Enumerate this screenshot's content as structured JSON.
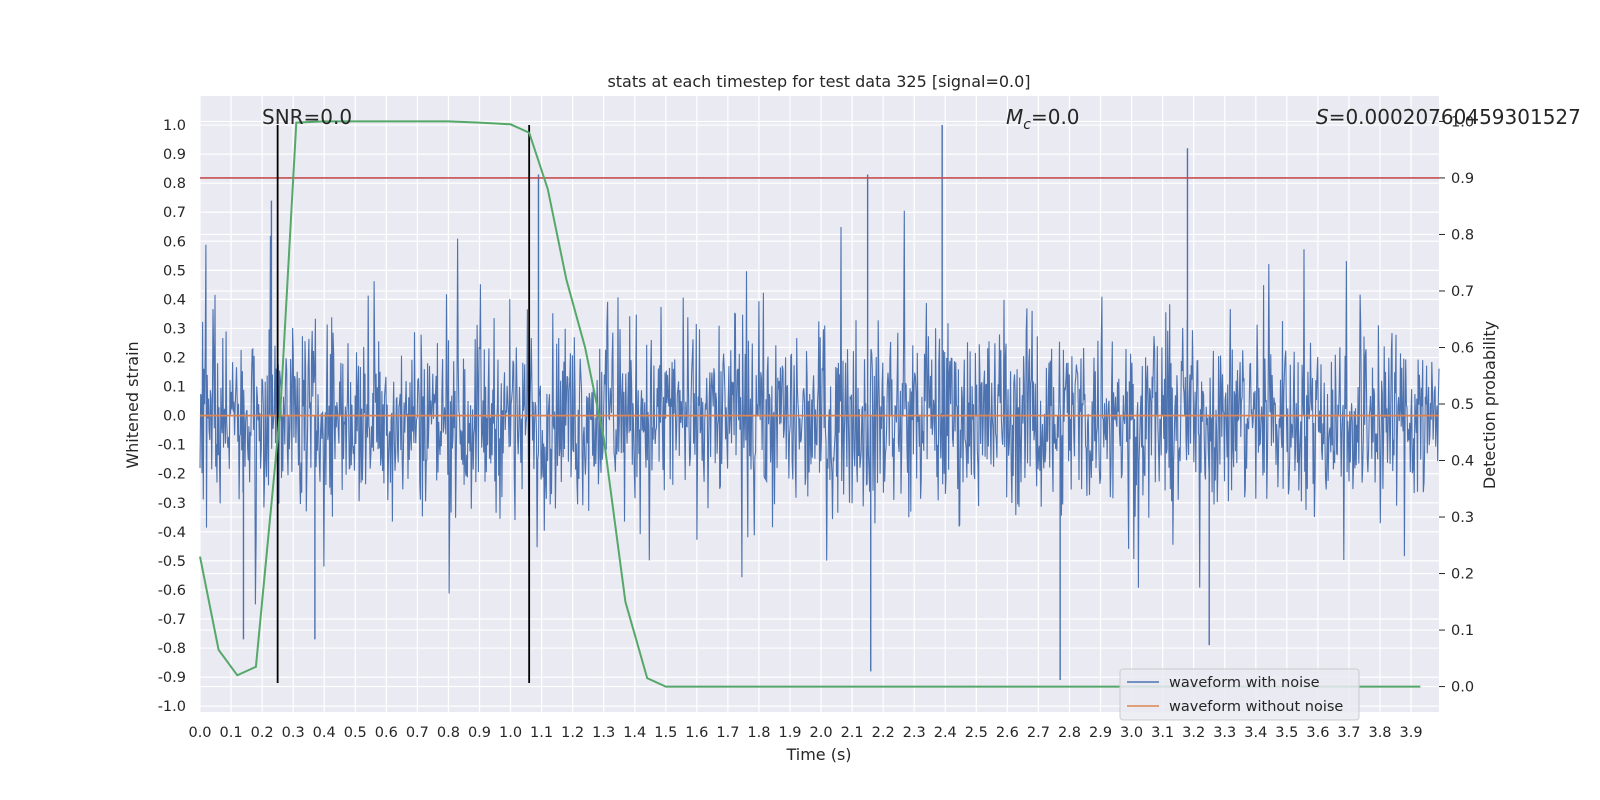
{
  "chart_data": {
    "type": "line",
    "title": "stats at each timestep for test data 325 [signal=0.0]",
    "xlabel": "Time (s)",
    "ylabel_left": "Whitened strain",
    "ylabel_right": "Detection probability",
    "xlim": [
      0.0,
      3.99
    ],
    "ylim_left": [
      -1.02,
      1.1
    ],
    "ylim_right": [
      -0.045,
      1.045
    ],
    "x_ticks": [
      "0.0",
      "0.1",
      "0.2",
      "0.3",
      "0.4",
      "0.5",
      "0.6",
      "0.7",
      "0.8",
      "0.9",
      "1.0",
      "1.1",
      "1.2",
      "1.3",
      "1.4",
      "1.5",
      "1.6",
      "1.7",
      "1.8",
      "1.9",
      "2.0",
      "2.1",
      "2.2",
      "2.3",
      "2.4",
      "2.5",
      "2.6",
      "2.7",
      "2.8",
      "2.9",
      "3.0",
      "3.1",
      "3.2",
      "3.3",
      "3.4",
      "3.5",
      "3.6",
      "3.7",
      "3.8",
      "3.9"
    ],
    "y_ticks_left": [
      "1.0",
      "0.9",
      "0.8",
      "0.7",
      "0.6",
      "0.5",
      "0.4",
      "0.3",
      "0.2",
      "0.1",
      "0.0",
      "-0.1",
      "-0.2",
      "-0.3",
      "-0.4",
      "-0.5",
      "-0.6",
      "-0.7",
      "-0.8",
      "-0.9",
      "-1.0"
    ],
    "y_ticks_right": [
      "1.0",
      "0.9",
      "0.8",
      "0.7",
      "0.6",
      "0.5",
      "0.4",
      "0.3",
      "0.2",
      "0.1",
      "0.0"
    ],
    "grid": true,
    "legend_position": "bottom-right",
    "annotations": {
      "snr": "SNR=0.0",
      "mc_symbol": "M",
      "mc_sub": "c",
      "mc_value": "=0.0",
      "s_symbol": "S",
      "s_value": "=0.00020760459301527"
    },
    "series": [
      {
        "name": "waveform with noise",
        "color": "#4c72b0",
        "axis": "left",
        "noise_amplitude": 0.5,
        "x_range": [
          0.0,
          3.99
        ]
      },
      {
        "name": "waveform without noise",
        "color": "#dd8452",
        "axis": "left",
        "x": [
          0.0,
          3.99
        ],
        "y": [
          0.0,
          0.0
        ]
      },
      {
        "name": "",
        "color": "#55a868",
        "axis": "right",
        "x": [
          0.0,
          0.06,
          0.12,
          0.18,
          0.24,
          0.26,
          0.31,
          0.4,
          0.6,
          0.8,
          0.9,
          1.0,
          1.06,
          1.12,
          1.18,
          1.24,
          1.3,
          1.37,
          1.44,
          1.5,
          1.7,
          2.0,
          2.5,
          3.0,
          3.5,
          3.93
        ],
        "y": [
          0.23,
          0.065,
          0.02,
          0.035,
          0.38,
          0.5,
          0.998,
          1.0,
          1.0,
          1.0,
          0.998,
          0.995,
          0.98,
          0.88,
          0.72,
          0.6,
          0.44,
          0.15,
          0.015,
          0.0,
          0.0,
          0.0,
          0.0,
          0.0,
          0.0,
          0.0
        ]
      },
      {
        "name": "",
        "color": "#c44e52",
        "axis": "right",
        "x": [
          0.0,
          3.99
        ],
        "y": [
          0.9,
          0.9
        ]
      }
    ],
    "vlines": [
      {
        "x": 0.25,
        "ymin": -0.92,
        "ymax": 1.0,
        "color": "#000000"
      },
      {
        "x": 1.06,
        "ymin": -0.92,
        "ymax": 1.0,
        "color": "#000000"
      }
    ],
    "spikes": [
      {
        "x": 2.39,
        "y": 1.0
      },
      {
        "x": 3.18,
        "y": 0.92
      },
      {
        "x": 2.15,
        "y": 0.83
      },
      {
        "x": 1.09,
        "y": 0.83
      },
      {
        "x": 0.23,
        "y": 0.74
      },
      {
        "x": 2.16,
        "y": -0.88
      },
      {
        "x": 2.77,
        "y": -0.91
      },
      {
        "x": 0.14,
        "y": -0.77
      },
      {
        "x": 0.37,
        "y": -0.77
      },
      {
        "x": 3.25,
        "y": -0.79
      }
    ]
  }
}
